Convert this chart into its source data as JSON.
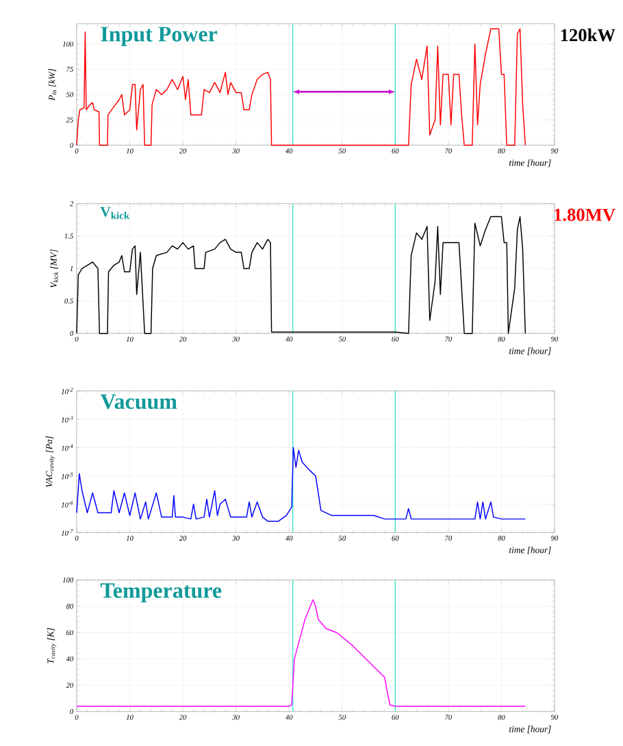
{
  "chart_data": [
    {
      "type": "line",
      "title": "Input Power",
      "ylabel": "P$_{in}$ [kW]",
      "xlabel": "time [hour]",
      "color": "#ff0000",
      "marker": "none",
      "line_style": "solid",
      "grid": true,
      "xlim": [
        0,
        90
      ],
      "xticks": [
        0,
        10,
        20,
        30,
        40,
        50,
        60,
        70,
        80,
        90
      ],
      "ylim": [
        0,
        120
      ],
      "yticks": [
        0,
        25,
        50,
        75,
        100
      ],
      "x": [
        0,
        0.3,
        0.6,
        1.4,
        1.6,
        1.8,
        2.5,
        3.0,
        3.3,
        4.2,
        4.3,
        5.8,
        5.9,
        7,
        8,
        8.5,
        9,
        10,
        10.5,
        11,
        11.3,
        12,
        12.5,
        12.8,
        14,
        14.2,
        15,
        16,
        17,
        18,
        19,
        20,
        20.5,
        21,
        21.5,
        22,
        23.5,
        24,
        25,
        26,
        27,
        28,
        28.5,
        29,
        30,
        31,
        31.5,
        32.5,
        33,
        34,
        35,
        36,
        36.5,
        36.7,
        62.5,
        63,
        64,
        65,
        66,
        66.5,
        67.5,
        68,
        68.5,
        69,
        70,
        70.5,
        71,
        72,
        72.5,
        73,
        74.5,
        75,
        75.5,
        76,
        77,
        78,
        79.5,
        80,
        80.5,
        81,
        82.5,
        83,
        83.5,
        84,
        84.5
      ],
      "values": [
        0,
        25,
        35,
        37,
        112,
        35,
        40,
        42,
        35,
        33,
        0,
        0,
        30,
        38,
        45,
        50,
        30,
        35,
        60,
        60,
        15,
        55,
        60,
        0,
        0,
        40,
        55,
        50,
        55,
        65,
        55,
        68,
        45,
        65,
        30,
        30,
        30,
        55,
        52,
        62,
        52,
        72,
        50,
        62,
        52,
        52,
        35,
        35,
        50,
        65,
        70,
        72,
        65,
        0,
        0,
        60,
        85,
        65,
        98,
        10,
        25,
        98,
        20,
        70,
        70,
        20,
        70,
        70,
        30,
        0,
        0,
        100,
        20,
        60,
        90,
        115,
        115,
        70,
        70,
        0,
        0,
        110,
        115,
        40,
        0
      ],
      "ref_lines": [
        {
          "axis": "x",
          "value": 40.7,
          "color": "#33e6cc"
        },
        {
          "axis": "x",
          "value": 60,
          "color": "#33e6cc"
        }
      ],
      "annotations": [
        "120kW"
      ]
    },
    {
      "type": "line",
      "title": "V$_{kick}$",
      "ylabel": "V$_{kick}$ [MV]",
      "xlabel": "time [hour]",
      "color": "#000000",
      "marker": "none",
      "line_style": "solid",
      "grid": true,
      "xlim": [
        0,
        90
      ],
      "xticks": [
        0,
        10,
        20,
        30,
        40,
        50,
        60,
        70,
        80,
        90
      ],
      "ylim": [
        0,
        2
      ],
      "yticks": [
        0,
        0.5,
        1,
        1.5,
        2
      ],
      "x": [
        0,
        0.3,
        1,
        2,
        3,
        4,
        4.3,
        5.8,
        6,
        7,
        8,
        8.5,
        9,
        10,
        10.5,
        11,
        11.3,
        12,
        12.8,
        14,
        14.3,
        15,
        17,
        18,
        19,
        20,
        21,
        22,
        22.3,
        24,
        24.3,
        26,
        27,
        28,
        29,
        30,
        31,
        31.5,
        32.5,
        33,
        34,
        35,
        36,
        36.5,
        36.7,
        60,
        62.5,
        63,
        64,
        65,
        66,
        66.5,
        67.5,
        68,
        68.5,
        69,
        70.5,
        72,
        72.5,
        73,
        74.5,
        75,
        76,
        77,
        78,
        80,
        80.5,
        81,
        81.3,
        82.5,
        83,
        83.5,
        84,
        84.5
      ],
      "values": [
        0,
        0.9,
        1.0,
        1.05,
        1.1,
        1.0,
        0,
        0,
        0.95,
        1.05,
        1.1,
        1.2,
        0.95,
        0.95,
        1.3,
        1.35,
        0.6,
        1.25,
        0,
        0,
        1.0,
        1.2,
        1.25,
        1.35,
        1.3,
        1.4,
        1.3,
        1.35,
        1.0,
        1.0,
        1.25,
        1.3,
        1.4,
        1.45,
        1.3,
        1.25,
        1.25,
        1.0,
        1.0,
        1.25,
        1.4,
        1.3,
        1.45,
        1.4,
        0.02,
        0.02,
        0,
        1.2,
        1.55,
        1.45,
        1.65,
        0.2,
        0.8,
        1.65,
        0.6,
        1.4,
        1.4,
        1.4,
        0.7,
        0,
        0,
        1.7,
        1.35,
        1.6,
        1.8,
        1.8,
        1.4,
        1.4,
        0,
        0.7,
        1.6,
        1.8,
        1.3,
        0
      ],
      "ref_lines": [
        {
          "axis": "x",
          "value": 40.7,
          "color": "#33e6cc"
        },
        {
          "axis": "x",
          "value": 60,
          "color": "#33e6cc"
        }
      ],
      "annotations": [
        "1.80MV"
      ]
    },
    {
      "type": "line",
      "title": "Vacuum",
      "ylabel": "VAC$_{cavity}$ [Pa]",
      "xlabel": "time [hour]",
      "color": "#0000ff",
      "marker": "none",
      "line_style": "solid",
      "grid": true,
      "log": "y",
      "xlim": [
        0,
        90
      ],
      "xticks": [
        0,
        10,
        20,
        30,
        40,
        50,
        60,
        70,
        80,
        90
      ],
      "ylim": [
        1e-07,
        0.01
      ],
      "yticks": [
        {
          "value": 1e-07,
          "label": "10$^{-7}$"
        },
        {
          "value": 1e-06,
          "label": "10$^{-6}$"
        },
        {
          "value": 1e-05,
          "label": "10$^{-5}$"
        },
        {
          "value": 0.0001,
          "label": "10$^{-4}$"
        },
        {
          "value": 0.001,
          "label": "10$^{-3}$"
        },
        {
          "value": 0.01,
          "label": "10$^{-2}$"
        }
      ],
      "x": [
        0,
        0.5,
        1,
        2,
        3,
        4,
        6.5,
        7,
        8,
        9,
        10,
        11,
        12,
        13,
        13.5,
        15,
        16,
        18,
        18.3,
        18.6,
        20,
        21.5,
        22,
        22.5,
        24,
        24.5,
        25,
        26,
        26.5,
        27,
        28,
        29,
        32,
        32.5,
        33,
        34,
        35,
        36,
        38,
        39.5,
        40.5,
        40.8,
        41.3,
        41.8,
        42.5,
        44,
        45,
        45.5,
        46,
        48,
        56,
        58,
        62,
        62.5,
        63,
        70,
        75,
        75.5,
        76,
        76.5,
        77,
        78,
        78.5,
        80,
        84.5
      ],
      "values": [
        5e-07,
        1.2e-05,
        3e-06,
        5e-07,
        2.5e-06,
        5e-07,
        5e-07,
        3e-06,
        5e-07,
        2.5e-06,
        4e-07,
        2.5e-06,
        3e-07,
        1.2e-06,
        3e-07,
        2.5e-06,
        3.5e-07,
        3.5e-07,
        2e-06,
        3.5e-07,
        3.5e-07,
        3e-07,
        1e-06,
        3e-07,
        3.5e-07,
        1.5e-06,
        3.5e-07,
        3e-06,
        4e-07,
        1e-06,
        1.5e-06,
        3.5e-07,
        3.5e-07,
        1.2e-06,
        3.5e-07,
        1.2e-06,
        3.5e-07,
        2.5e-07,
        2.5e-07,
        4e-07,
        8e-07,
        0.0001,
        2e-05,
        8e-05,
        3e-05,
        1.5e-05,
        1e-05,
        2.5e-06,
        6e-07,
        4e-07,
        4e-07,
        3e-07,
        3e-07,
        7e-07,
        3e-07,
        3e-07,
        3e-07,
        1.2e-06,
        3e-07,
        1.2e-06,
        3e-07,
        1.2e-06,
        3.5e-07,
        3e-07,
        3e-07
      ],
      "ref_lines": [
        {
          "axis": "x",
          "value": 40.7,
          "color": "#33e6cc"
        },
        {
          "axis": "x",
          "value": 60,
          "color": "#33e6cc"
        }
      ]
    },
    {
      "type": "line",
      "title": "Temperature",
      "ylabel": "T$_{cavity}$ [K]",
      "xlabel": "time [hour]",
      "color": "#ff00ff",
      "marker": "none",
      "line_style": "solid",
      "grid": true,
      "xlim": [
        0,
        90
      ],
      "xticks": [
        0,
        10,
        20,
        30,
        40,
        50,
        60,
        70,
        80,
        90
      ],
      "ylim": [
        0,
        100
      ],
      "yticks": [
        0,
        20,
        40,
        60,
        80,
        100
      ],
      "x": [
        0,
        40,
        40.5,
        41,
        42,
        43,
        44.5,
        45,
        45.5,
        47,
        49,
        52,
        55,
        58,
        58.5,
        59,
        60,
        84.5
      ],
      "values": [
        4,
        4,
        5,
        40,
        55,
        70,
        85,
        80,
        70,
        63,
        60,
        50,
        38,
        26,
        15,
        5,
        4,
        4
      ],
      "ref_lines": [
        {
          "axis": "x",
          "value": 40.7,
          "color": "#33e6cc"
        },
        {
          "axis": "x",
          "value": 60,
          "color": "#33e6cc"
        }
      ]
    }
  ]
}
